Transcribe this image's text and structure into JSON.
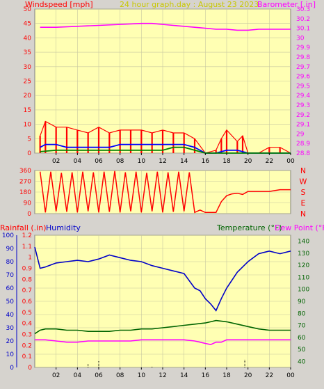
{
  "header": {
    "left_label": "Windspeed [mph]",
    "center_label": "24 hour graph.day : August 23 2023",
    "right_label": "Barometer [.in]"
  },
  "colors": {
    "bg": "#d6d3ce",
    "plot": "#ffffb3",
    "grid": "#c8c8a0",
    "wind": "#ff0000",
    "gust": "#ff0000",
    "wind_avg": "#0000ff",
    "wind_low": "#008000",
    "baro": "#ff00ff",
    "direction": "#ff0000",
    "humidity": "#0000c8",
    "temperature": "#006400",
    "dewpoint": "#ff00ff",
    "rain": "#ff0000",
    "title": "#c8c800"
  },
  "time_ticks": [
    "02",
    "04",
    "06",
    "08",
    "10",
    "12",
    "14",
    "16",
    "18",
    "20",
    "22",
    "00"
  ],
  "panel1": {
    "left_ticks": [
      "0",
      "5",
      "10",
      "15",
      "20",
      "25",
      "30",
      "35",
      "40",
      "45",
      "50"
    ],
    "right_ticks": [
      "28.8",
      "28.9",
      "29",
      "29.1",
      "29.2",
      "29.3",
      "29.4",
      "29.5",
      "29.6",
      "29.7",
      "29.8",
      "29.9",
      "30",
      "30.1",
      "30.2",
      "30.3"
    ]
  },
  "panel2": {
    "left_ticks": [
      "0",
      "90",
      "180",
      "270",
      "360"
    ],
    "directions": [
      "N",
      "W",
      "S",
      "E",
      "N"
    ]
  },
  "panel3": {
    "rain_label": "Rainfall (.in)",
    "humidity_label": "Humidity",
    "temp_label": "Temperature (°F)",
    "dew_label": "Dew Point (°F)",
    "rain_ticks": [
      "0",
      "0.1",
      "0.2",
      "0.3",
      "0.4",
      "0.5",
      "0.6",
      "0.7",
      "0.8",
      "0.9",
      "1",
      "1.1",
      "1.2"
    ],
    "humidity_ticks": [
      "0",
      "10",
      "20",
      "30",
      "40",
      "50",
      "60",
      "70",
      "80",
      "90",
      "100"
    ],
    "temp_ticks": [
      "40",
      "50",
      "60",
      "70",
      "80",
      "90",
      "100",
      "110",
      "120",
      "130",
      "140"
    ]
  },
  "chart_data": [
    {
      "type": "line",
      "x_unit": "hour",
      "xlim": [
        0,
        24
      ],
      "left_ylim": [
        0,
        50
      ],
      "right_ylim": [
        28.8,
        30.3
      ],
      "series": [
        {
          "name": "Windspeed [mph]",
          "axis": "left",
          "style": "bars",
          "x": [
            0.5,
            1,
            2,
            3,
            4,
            5,
            6,
            7,
            8,
            9,
            10,
            11,
            12,
            13,
            14,
            15,
            16,
            17,
            17.5,
            18,
            19,
            19.5,
            20,
            21,
            22,
            23,
            24
          ],
          "values": [
            6,
            11,
            9,
            9,
            8,
            7,
            9,
            7,
            8,
            8,
            8,
            7,
            8,
            7,
            7,
            5,
            0,
            1,
            5,
            8,
            4,
            6,
            0,
            0,
            2,
            2,
            0
          ]
        },
        {
          "name": "Windspeed avg",
          "axis": "left",
          "x": [
            0.5,
            1,
            2,
            3,
            4,
            5,
            6,
            7,
            8,
            9,
            10,
            11,
            12,
            13,
            14,
            15,
            16,
            17,
            18,
            19,
            20,
            21,
            22,
            23,
            24
          ],
          "values": [
            2,
            3,
            3,
            2,
            2,
            2,
            2,
            2,
            3,
            3,
            3,
            3,
            3,
            3,
            3,
            2,
            0,
            0,
            1,
            1,
            0,
            0,
            0,
            0,
            0
          ]
        },
        {
          "name": "Wind low",
          "axis": "left",
          "x": [
            0.5,
            2,
            4,
            6,
            8,
            10,
            12,
            13,
            14,
            15,
            16,
            18,
            20,
            22,
            24
          ],
          "values": [
            0.5,
            1,
            1,
            1,
            1,
            1,
            1,
            2,
            2,
            1,
            0,
            0,
            0,
            0,
            0
          ]
        },
        {
          "name": "Barometer [.in]",
          "axis": "right",
          "x": [
            0.5,
            2,
            4,
            6,
            8,
            10,
            11,
            12,
            13,
            14,
            15,
            16,
            17,
            18,
            19,
            20,
            21,
            22,
            23,
            24
          ],
          "values": [
            30.11,
            30.11,
            30.12,
            30.13,
            30.14,
            30.15,
            30.15,
            30.14,
            30.13,
            30.12,
            30.11,
            30.1,
            30.09,
            30.09,
            30.08,
            30.08,
            30.09,
            30.09,
            30.09,
            30.09
          ]
        }
      ]
    },
    {
      "type": "line",
      "x_unit": "hour",
      "xlim": [
        0,
        24
      ],
      "ylim": [
        0,
        360
      ],
      "series": [
        {
          "name": "Wind direction",
          "x": [
            0.5,
            1,
            1.5,
            2,
            2.5,
            3,
            3.5,
            4,
            4.5,
            5,
            5.5,
            6,
            6.5,
            7,
            7.5,
            8,
            8.5,
            9,
            9.5,
            10,
            10.5,
            11,
            11.5,
            12,
            12.5,
            13,
            13.5,
            14,
            14.5,
            15,
            15.5,
            16,
            16.5,
            17,
            17.5,
            18,
            18.5,
            19,
            19.5,
            20,
            21,
            22,
            23,
            24
          ],
          "values": [
            350,
            10,
            350,
            20,
            340,
            15,
            345,
            10,
            350,
            20,
            345,
            10,
            350,
            15,
            355,
            10,
            345,
            20,
            350,
            10,
            340,
            20,
            350,
            10,
            345,
            15,
            350,
            20,
            345,
            10,
            30,
            10,
            10,
            10,
            100,
            150,
            165,
            170,
            160,
            185,
            185,
            185,
            200,
            200
          ]
        }
      ]
    },
    {
      "type": "line",
      "x_unit": "hour",
      "xlim": [
        0,
        24
      ],
      "humidity_ylim": [
        0,
        100
      ],
      "temp_ylim": [
        35,
        145
      ],
      "series": [
        {
          "name": "Humidity",
          "axis": "humidity",
          "x": [
            0,
            0.5,
            1,
            2,
            3,
            4,
            5,
            6,
            7,
            8,
            9,
            10,
            11,
            12,
            13,
            14,
            15,
            15.5,
            16,
            16.5,
            17,
            17.5,
            18,
            19,
            20,
            21,
            22,
            23,
            24
          ],
          "values": [
            91,
            75,
            76,
            79,
            80,
            81,
            80,
            82,
            85,
            83,
            81,
            80,
            77,
            75,
            73,
            71,
            60,
            58,
            52,
            48,
            43,
            52,
            60,
            72,
            80,
            86,
            88,
            86,
            88
          ]
        },
        {
          "name": "Temperature (°F)",
          "axis": "temp",
          "x": [
            0,
            0.5,
            1,
            2,
            3,
            4,
            5,
            6,
            7,
            8,
            9,
            10,
            11,
            12,
            13,
            14,
            15,
            16,
            17,
            18,
            19,
            20,
            21,
            22,
            23,
            24
          ],
          "values": [
            63,
            66,
            67,
            67,
            66,
            66,
            65,
            65,
            65,
            66,
            66,
            67,
            67,
            68,
            69,
            70,
            71,
            72,
            74,
            73,
            71,
            69,
            67,
            66,
            66,
            66
          ]
        },
        {
          "name": "Dew Point (°F)",
          "axis": "temp",
          "x": [
            0,
            0.5,
            1,
            2,
            3,
            4,
            5,
            6,
            7,
            8,
            9,
            10,
            11,
            12,
            13,
            14,
            15,
            15.5,
            16,
            16.5,
            17,
            17.5,
            18,
            19,
            20,
            21,
            22,
            23,
            24
          ],
          "values": [
            58,
            58,
            58,
            57,
            56,
            56,
            57,
            57,
            57,
            57,
            57,
            58,
            58,
            58,
            58,
            58,
            57,
            56,
            55,
            54,
            56,
            56,
            58,
            58,
            58,
            58,
            58,
            58,
            58
          ]
        },
        {
          "name": "Rainfall (.in)",
          "axis": "humidity",
          "style": "spikes",
          "x": [
            5,
            6,
            11,
            19.7
          ],
          "values": [
            3,
            5,
            1,
            6
          ]
        }
      ]
    }
  ]
}
